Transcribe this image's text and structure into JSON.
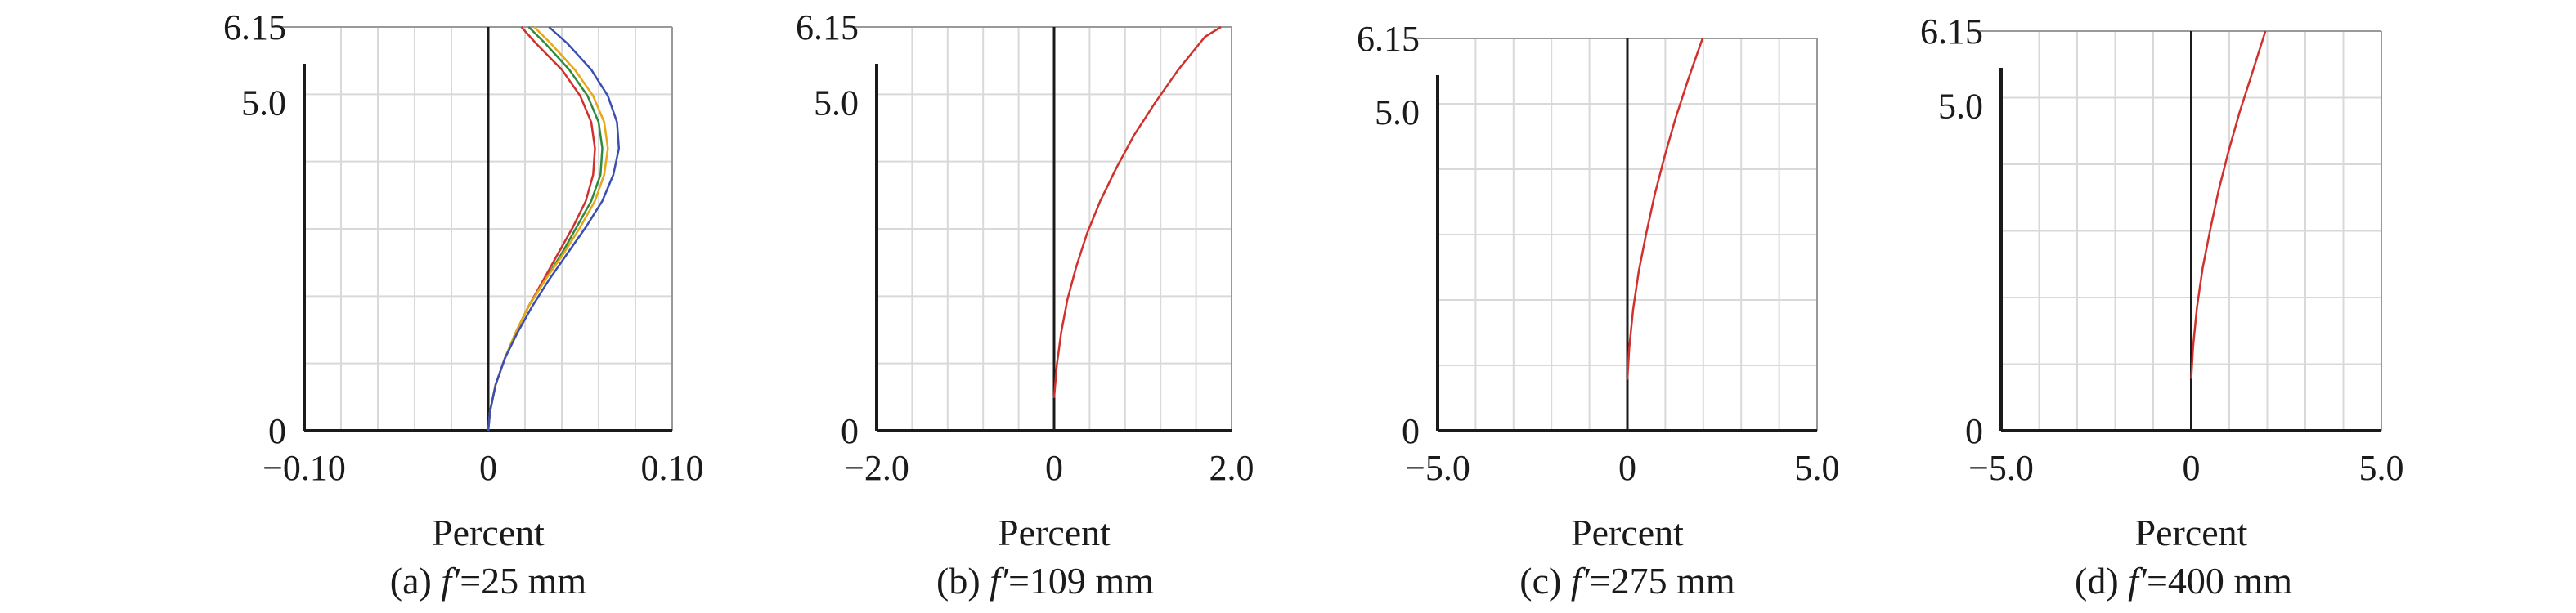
{
  "chart_data": [
    {
      "type": "line",
      "caption": {
        "prefix": "(a) ",
        "var": "f′",
        "suffix": "=25 mm"
      },
      "xlabel": "Percent",
      "ylabel": "",
      "xlim": [
        -0.1,
        0.1
      ],
      "ylim": [
        0,
        6.15
      ],
      "x_ticks": [
        {
          "v": -0.1,
          "label": "−0.10"
        },
        {
          "v": 0,
          "label": "0"
        },
        {
          "v": 0.1,
          "label": "0.10"
        }
      ],
      "y_ticks": [
        {
          "v": 0,
          "label": "0"
        },
        {
          "v": 5.0,
          "label": "5.0"
        },
        {
          "v": 6.15,
          "label": "6.15"
        }
      ],
      "x_grid": 10,
      "y_grid": 6,
      "grid": true,
      "series": [
        {
          "color": "#d0312d",
          "points": [
            [
              0,
              0
            ],
            [
              0.001,
              0.3
            ],
            [
              0.004,
              0.7
            ],
            [
              0.009,
              1.1
            ],
            [
              0.015,
              1.5
            ],
            [
              0.022,
              1.9
            ],
            [
              0.03,
              2.3
            ],
            [
              0.038,
              2.7
            ],
            [
              0.046,
              3.1
            ],
            [
              0.053,
              3.5
            ],
            [
              0.057,
              3.9
            ],
            [
              0.058,
              4.3
            ],
            [
              0.056,
              4.7
            ],
            [
              0.05,
              5.1
            ],
            [
              0.04,
              5.5
            ],
            [
              0.026,
              5.9
            ],
            [
              0.018,
              6.15
            ]
          ]
        },
        {
          "color": "#2e8b3e",
          "points": [
            [
              0,
              0
            ],
            [
              0.001,
              0.3
            ],
            [
              0.004,
              0.7
            ],
            [
              0.009,
              1.1
            ],
            [
              0.015,
              1.5
            ],
            [
              0.022,
              1.9
            ],
            [
              0.031,
              2.3
            ],
            [
              0.04,
              2.7
            ],
            [
              0.048,
              3.1
            ],
            [
              0.056,
              3.5
            ],
            [
              0.061,
              3.9
            ],
            [
              0.062,
              4.3
            ],
            [
              0.06,
              4.7
            ],
            [
              0.054,
              5.1
            ],
            [
              0.044,
              5.5
            ],
            [
              0.031,
              5.9
            ],
            [
              0.022,
              6.15
            ]
          ]
        },
        {
          "color": "#e6a817",
          "points": [
            [
              0,
              0
            ],
            [
              0.001,
              0.3
            ],
            [
              0.004,
              0.7
            ],
            [
              0.009,
              1.1
            ],
            [
              0.015,
              1.5
            ],
            [
              0.022,
              1.9
            ],
            [
              0.031,
              2.3
            ],
            [
              0.041,
              2.7
            ],
            [
              0.05,
              3.1
            ],
            [
              0.058,
              3.5
            ],
            [
              0.063,
              3.9
            ],
            [
              0.065,
              4.3
            ],
            [
              0.063,
              4.7
            ],
            [
              0.057,
              5.1
            ],
            [
              0.047,
              5.5
            ],
            [
              0.034,
              5.9
            ],
            [
              0.025,
              6.15
            ]
          ]
        },
        {
          "color": "#3a4fb0",
          "points": [
            [
              0,
              0
            ],
            [
              0.001,
              0.3
            ],
            [
              0.004,
              0.7
            ],
            [
              0.009,
              1.1
            ],
            [
              0.016,
              1.5
            ],
            [
              0.024,
              1.9
            ],
            [
              0.033,
              2.3
            ],
            [
              0.043,
              2.7
            ],
            [
              0.053,
              3.1
            ],
            [
              0.062,
              3.5
            ],
            [
              0.068,
              3.9
            ],
            [
              0.071,
              4.3
            ],
            [
              0.07,
              4.7
            ],
            [
              0.065,
              5.1
            ],
            [
              0.056,
              5.5
            ],
            [
              0.043,
              5.9
            ],
            [
              0.033,
              6.15
            ]
          ]
        }
      ]
    },
    {
      "type": "line",
      "caption": {
        "prefix": "(b) ",
        "var": "f′",
        "suffix": "=109 mm"
      },
      "xlabel": "Percent",
      "ylabel": "",
      "xlim": [
        -2.0,
        2.0
      ],
      "ylim": [
        0,
        6.15
      ],
      "x_ticks": [
        {
          "v": -2.0,
          "label": "−2.0"
        },
        {
          "v": 0,
          "label": "0"
        },
        {
          "v": 2.0,
          "label": "2.0"
        }
      ],
      "y_ticks": [
        {
          "v": 0,
          "label": "0"
        },
        {
          "v": 5.0,
          "label": "5.0"
        },
        {
          "v": 6.15,
          "label": "6.15"
        }
      ],
      "x_grid": 10,
      "y_grid": 6,
      "grid": true,
      "series": [
        {
          "color": "#d0312d",
          "points": [
            [
              0,
              0.5
            ],
            [
              0.03,
              1.0
            ],
            [
              0.08,
              1.5
            ],
            [
              0.15,
              2.0
            ],
            [
              0.25,
              2.5
            ],
            [
              0.37,
              3.0
            ],
            [
              0.52,
              3.5
            ],
            [
              0.7,
              4.0
            ],
            [
              0.9,
              4.5
            ],
            [
              1.14,
              5.0
            ],
            [
              1.4,
              5.5
            ],
            [
              1.7,
              6.0
            ],
            [
              1.88,
              6.15
            ]
          ]
        }
      ]
    },
    {
      "type": "line",
      "caption": {
        "prefix": "(c) ",
        "var": "f′",
        "suffix": "=275 mm"
      },
      "xlabel": "Percent",
      "ylabel": "",
      "xlim": [
        -5.0,
        5.0
      ],
      "ylim": [
        0,
        6.15
      ],
      "x_ticks": [
        {
          "v": -5.0,
          "label": "−5.0"
        },
        {
          "v": 0,
          "label": "0"
        },
        {
          "v": 5.0,
          "label": "5.0"
        }
      ],
      "y_ticks": [
        {
          "v": 0,
          "label": "0"
        },
        {
          "v": 5.0,
          "label": "5.0"
        },
        {
          "v": 6.15,
          "label": "6.15"
        }
      ],
      "x_grid": 10,
      "y_grid": 6,
      "grid": true,
      "series": [
        {
          "color": "#d0312d",
          "points": [
            [
              0,
              0.8
            ],
            [
              0.05,
              1.3
            ],
            [
              0.15,
              1.9
            ],
            [
              0.3,
              2.5
            ],
            [
              0.5,
              3.1
            ],
            [
              0.72,
              3.7
            ],
            [
              0.98,
              4.3
            ],
            [
              1.27,
              4.9
            ],
            [
              1.6,
              5.5
            ],
            [
              1.98,
              6.15
            ]
          ]
        }
      ]
    },
    {
      "type": "line",
      "caption": {
        "prefix": "(d) ",
        "var": "f′",
        "suffix": "=400 mm"
      },
      "xlabel": "Percent",
      "ylabel": "",
      "xlim": [
        -5.0,
        5.0
      ],
      "ylim": [
        0,
        6.15
      ],
      "x_ticks": [
        {
          "v": -5.0,
          "label": "−5.0"
        },
        {
          "v": 0,
          "label": "0"
        },
        {
          "v": 5.0,
          "label": "5.0"
        }
      ],
      "y_ticks": [
        {
          "v": 0,
          "label": "0"
        },
        {
          "v": 5.0,
          "label": "5.0"
        },
        {
          "v": 6.15,
          "label": "6.15"
        }
      ],
      "x_grid": 10,
      "y_grid": 6,
      "grid": true,
      "series": [
        {
          "color": "#d0312d",
          "points": [
            [
              0,
              0.8
            ],
            [
              0.05,
              1.3
            ],
            [
              0.15,
              1.9
            ],
            [
              0.3,
              2.5
            ],
            [
              0.5,
              3.1
            ],
            [
              0.72,
              3.7
            ],
            [
              0.98,
              4.3
            ],
            [
              1.27,
              4.9
            ],
            [
              1.6,
              5.5
            ],
            [
              1.95,
              6.15
            ]
          ]
        }
      ]
    }
  ]
}
